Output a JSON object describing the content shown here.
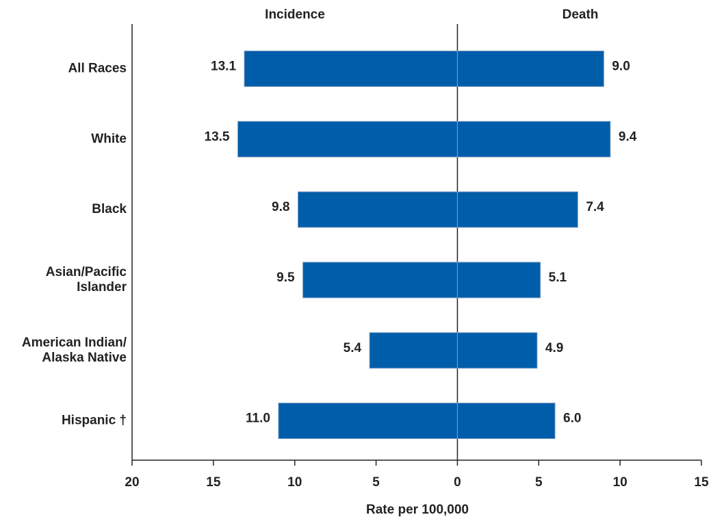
{
  "chart_data": {
    "type": "butterfly",
    "x_label": "Rate per 100,000",
    "categories": [
      "All Races",
      "White",
      "Black",
      "Asian/Pacific\nIslander",
      "American Indian/\nAlaska Native",
      "Hispanic †"
    ],
    "series": [
      {
        "name": "Incidence",
        "color": "#005daa",
        "values": [
          13.1,
          13.5,
          9.8,
          9.5,
          5.4,
          11.0
        ],
        "value_labels": [
          "13.1",
          "13.5",
          "9.8",
          "9.5",
          "5.4",
          "11.0"
        ]
      },
      {
        "name": "Death",
        "color": "#005daa",
        "values": [
          9.0,
          9.4,
          7.4,
          5.1,
          4.9,
          6.0
        ],
        "value_labels": [
          "9.0",
          "9.4",
          "7.4",
          "5.1",
          "4.9",
          "6.0"
        ]
      }
    ],
    "xlim": [
      -20,
      15
    ],
    "xticks": [
      {
        "value": -20,
        "label": "20"
      },
      {
        "value": -15,
        "label": "15"
      },
      {
        "value": -10,
        "label": "10"
      },
      {
        "value": -5,
        "label": "5"
      },
      0,
      5,
      10,
      15
    ]
  }
}
